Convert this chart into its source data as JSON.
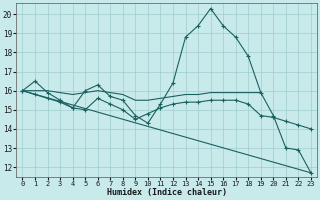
{
  "title": "",
  "xlabel": "Humidex (Indice chaleur)",
  "xlim": [
    -0.5,
    23.5
  ],
  "ylim": [
    11.5,
    20.6
  ],
  "yticks": [
    12,
    13,
    14,
    15,
    16,
    17,
    18,
    19,
    20
  ],
  "xticks": [
    0,
    1,
    2,
    3,
    4,
    5,
    6,
    7,
    8,
    9,
    10,
    11,
    12,
    13,
    14,
    15,
    16,
    17,
    18,
    19,
    20,
    21,
    22,
    23
  ],
  "bg_color": "#c8eaea",
  "grid_color": "#a0cccc",
  "line_color": "#1a6060",
  "line1_x": [
    0,
    1,
    2,
    3,
    4,
    5,
    6,
    7,
    8,
    9,
    10,
    11,
    12,
    13,
    14,
    15,
    16,
    17,
    18,
    19,
    20,
    21,
    22,
    23
  ],
  "line1_y": [
    16.0,
    16.5,
    15.9,
    15.5,
    15.1,
    16.0,
    16.3,
    15.7,
    15.5,
    14.7,
    14.3,
    15.3,
    16.4,
    18.8,
    19.4,
    20.3,
    19.4,
    18.8,
    17.8,
    15.9,
    14.7,
    13.0,
    12.9,
    11.7
  ],
  "line2_x": [
    0,
    1,
    2,
    3,
    4,
    5,
    6,
    7,
    8,
    9,
    10,
    11,
    12,
    13,
    14,
    15,
    16,
    17,
    18,
    19
  ],
  "line2_y": [
    16.0,
    16.0,
    16.0,
    15.9,
    15.8,
    15.9,
    16.0,
    15.9,
    15.8,
    15.5,
    15.5,
    15.6,
    15.7,
    15.8,
    15.8,
    15.9,
    15.9,
    15.9,
    15.9,
    15.9
  ],
  "line3_x": [
    0,
    1,
    2,
    3,
    4,
    5,
    6,
    7,
    8,
    9,
    10,
    11,
    12,
    13,
    14,
    15,
    16,
    17,
    18,
    19,
    20,
    21,
    22,
    23
  ],
  "line3_y": [
    16.0,
    15.8,
    15.6,
    15.4,
    15.1,
    15.0,
    15.6,
    15.3,
    15.0,
    14.5,
    14.8,
    15.1,
    15.3,
    15.4,
    15.4,
    15.5,
    15.5,
    15.5,
    15.3,
    14.7,
    14.6,
    14.4,
    14.2,
    14.0
  ],
  "line4_x": [
    0,
    23
  ],
  "line4_y": [
    16.0,
    11.7
  ],
  "figsize": [
    3.2,
    2.0
  ],
  "dpi": 100
}
